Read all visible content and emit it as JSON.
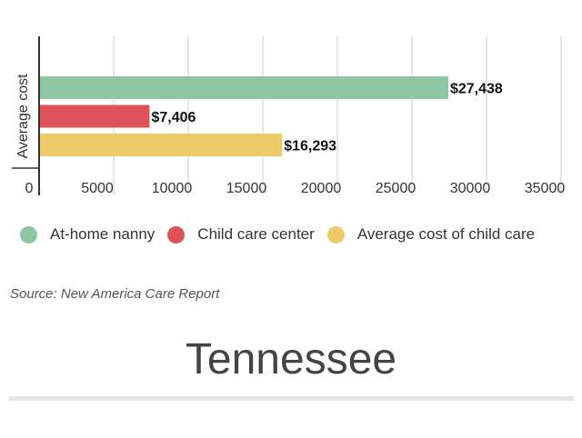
{
  "chart_data": {
    "type": "bar",
    "orientation": "horizontal",
    "title": "",
    "ylabel": "Average cost",
    "xlabel": "",
    "xlim": [
      0,
      35000
    ],
    "x_ticks": [
      0,
      5000,
      10000,
      15000,
      20000,
      25000,
      30000,
      35000
    ],
    "grid": true,
    "legend_position": "bottom",
    "series": [
      {
        "name": "At-home nanny",
        "value": 27438,
        "label": "$27,438",
        "color": "#8fc7a4"
      },
      {
        "name": "Child care center",
        "value": 7406,
        "label": "$7,406",
        "color": "#e0525a"
      },
      {
        "name": "Average cost of child care",
        "value": 16293,
        "label": "$16,293",
        "color": "#efca68"
      }
    ]
  },
  "footer": {
    "source": "Source: New America Care Report",
    "state_name": "Tennessee"
  }
}
